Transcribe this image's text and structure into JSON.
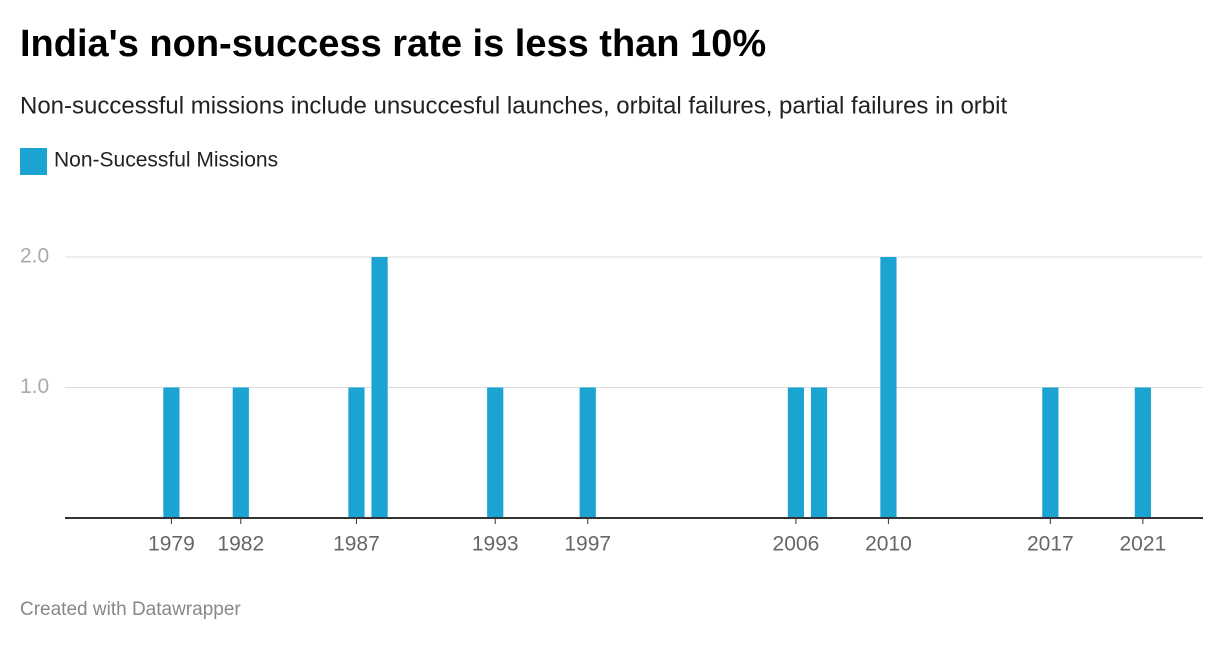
{
  "chart_data": {
    "type": "bar",
    "title": "India's non-success rate is less than 10%",
    "subtitle": "Non-successful missions include unsuccesful launches, orbital failures, partial failures in orbit",
    "footer": "Created with Datawrapper",
    "legend": "top-left",
    "grid": true,
    "series": [
      {
        "name": "Non-Sucessful Missions",
        "color": "#1ba3d1",
        "x": [
          1979,
          1982,
          1987,
          1988,
          1993,
          1997,
          2006,
          2007,
          2010,
          2017,
          2021
        ],
        "values": [
          1,
          1,
          1,
          2,
          1,
          1,
          1,
          1,
          2,
          1,
          1
        ]
      }
    ],
    "xlim": [
      1974.4,
      2023.6
    ],
    "xticks": [
      1979,
      1982,
      1987,
      1993,
      1997,
      2006,
      2010,
      2017,
      2021
    ],
    "ylim": [
      0,
      2
    ],
    "yticks": [
      {
        "value": 1,
        "label": "1.0"
      },
      {
        "value": 2,
        "label": "2.0"
      }
    ]
  }
}
